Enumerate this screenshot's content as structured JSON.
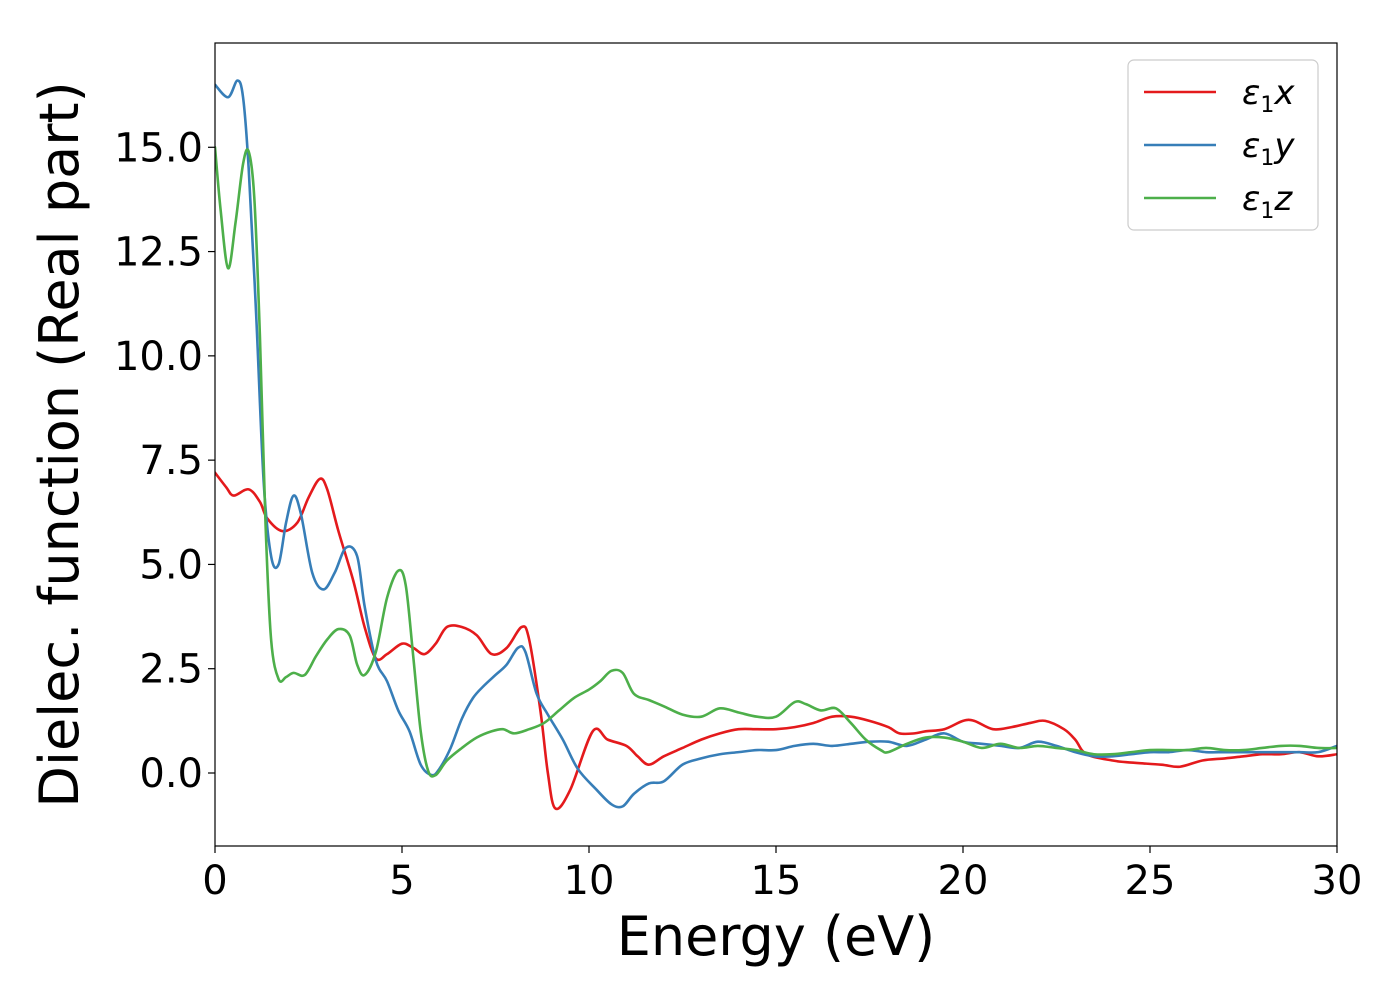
{
  "chart_data": {
    "type": "line",
    "title": "",
    "xlabel": "Energy (eV)",
    "ylabel": "Dielec. function (Real part)",
    "xlim": [
      0,
      30
    ],
    "ylim": [
      -1.75,
      17.5
    ],
    "xticks": [
      0,
      5,
      10,
      15,
      20,
      25,
      30
    ],
    "xtick_labels": [
      "0",
      "5",
      "10",
      "15",
      "20",
      "25",
      "30"
    ],
    "yticks": [
      0,
      2.5,
      5,
      7.5,
      10,
      12.5,
      15
    ],
    "ytick_labels": [
      "0.0",
      "2.5",
      "5.0",
      "7.5",
      "10.0",
      "12.5",
      "15.0"
    ],
    "grid": false,
    "legend_position": "top-right",
    "series": [
      {
        "name": "ε1x",
        "legend_main": "ε",
        "legend_sub": "1",
        "legend_suffix": "x",
        "color": "#e41a1c",
        "points": [
          [
            0,
            7.2
          ],
          [
            0.3,
            6.85
          ],
          [
            0.5,
            6.65
          ],
          [
            0.9,
            6.8
          ],
          [
            1.2,
            6.5
          ],
          [
            1.4,
            6.1
          ],
          [
            1.8,
            5.8
          ],
          [
            2.2,
            6.0
          ],
          [
            2.5,
            6.6
          ],
          [
            2.8,
            7.05
          ],
          [
            3.0,
            6.8
          ],
          [
            3.3,
            5.8
          ],
          [
            3.7,
            4.6
          ],
          [
            4.0,
            3.5
          ],
          [
            4.3,
            2.75
          ],
          [
            4.6,
            2.85
          ],
          [
            5.0,
            3.1
          ],
          [
            5.3,
            3.0
          ],
          [
            5.6,
            2.85
          ],
          [
            5.9,
            3.1
          ],
          [
            6.2,
            3.5
          ],
          [
            6.6,
            3.5
          ],
          [
            7.0,
            3.3
          ],
          [
            7.4,
            2.85
          ],
          [
            7.8,
            3.0
          ],
          [
            8.2,
            3.5
          ],
          [
            8.4,
            3.2
          ],
          [
            8.7,
            1.5
          ],
          [
            8.9,
            0.0
          ],
          [
            9.1,
            -0.85
          ],
          [
            9.5,
            -0.4
          ],
          [
            10.1,
            1.0
          ],
          [
            10.5,
            0.8
          ],
          [
            11.0,
            0.65
          ],
          [
            11.3,
            0.4
          ],
          [
            11.6,
            0.2
          ],
          [
            12.0,
            0.4
          ],
          [
            12.5,
            0.6
          ],
          [
            13.0,
            0.8
          ],
          [
            13.5,
            0.95
          ],
          [
            14.0,
            1.05
          ],
          [
            14.5,
            1.05
          ],
          [
            15.0,
            1.05
          ],
          [
            15.5,
            1.1
          ],
          [
            16.0,
            1.2
          ],
          [
            16.5,
            1.35
          ],
          [
            17.0,
            1.35
          ],
          [
            17.5,
            1.25
          ],
          [
            18.0,
            1.1
          ],
          [
            18.3,
            0.95
          ],
          [
            18.7,
            0.95
          ],
          [
            19.0,
            1.0
          ],
          [
            19.5,
            1.05
          ],
          [
            20.0,
            1.25
          ],
          [
            20.3,
            1.25
          ],
          [
            20.8,
            1.05
          ],
          [
            21.3,
            1.1
          ],
          [
            21.8,
            1.2
          ],
          [
            22.2,
            1.25
          ],
          [
            22.7,
            1.05
          ],
          [
            23.0,
            0.8
          ],
          [
            23.3,
            0.45
          ],
          [
            24.0,
            0.3
          ],
          [
            24.5,
            0.25
          ],
          [
            25.3,
            0.2
          ],
          [
            25.8,
            0.15
          ],
          [
            26.4,
            0.3
          ],
          [
            27.0,
            0.35
          ],
          [
            27.5,
            0.4
          ],
          [
            28.0,
            0.45
          ],
          [
            28.5,
            0.45
          ],
          [
            29.0,
            0.5
          ],
          [
            29.5,
            0.4
          ],
          [
            30.0,
            0.45
          ]
        ]
      },
      {
        "name": "ε1y",
        "legend_main": "ε",
        "legend_sub": "1",
        "legend_suffix": "y",
        "color": "#377eb8",
        "points": [
          [
            0,
            16.5
          ],
          [
            0.35,
            16.2
          ],
          [
            0.6,
            16.6
          ],
          [
            0.75,
            16.2
          ],
          [
            0.9,
            14.5
          ],
          [
            1.1,
            11.0
          ],
          [
            1.3,
            7.0
          ],
          [
            1.5,
            5.2
          ],
          [
            1.7,
            5.0
          ],
          [
            1.9,
            6.0
          ],
          [
            2.1,
            6.65
          ],
          [
            2.3,
            6.2
          ],
          [
            2.6,
            4.8
          ],
          [
            2.9,
            4.4
          ],
          [
            3.2,
            4.8
          ],
          [
            3.5,
            5.4
          ],
          [
            3.8,
            5.2
          ],
          [
            4.0,
            4.0
          ],
          [
            4.3,
            2.7
          ],
          [
            4.6,
            2.2
          ],
          [
            4.9,
            1.5
          ],
          [
            5.2,
            1.0
          ],
          [
            5.5,
            0.2
          ],
          [
            5.8,
            -0.05
          ],
          [
            6.0,
            0.1
          ],
          [
            6.3,
            0.6
          ],
          [
            6.6,
            1.3
          ],
          [
            6.9,
            1.8
          ],
          [
            7.2,
            2.1
          ],
          [
            7.5,
            2.35
          ],
          [
            7.8,
            2.6
          ],
          [
            8.1,
            3.0
          ],
          [
            8.3,
            2.9
          ],
          [
            8.6,
            1.9
          ],
          [
            8.9,
            1.4
          ],
          [
            9.3,
            0.8
          ],
          [
            9.7,
            0.1
          ],
          [
            10.2,
            -0.4
          ],
          [
            10.6,
            -0.75
          ],
          [
            10.9,
            -0.8
          ],
          [
            11.2,
            -0.5
          ],
          [
            11.6,
            -0.25
          ],
          [
            12.0,
            -0.2
          ],
          [
            12.5,
            0.2
          ],
          [
            13.0,
            0.35
          ],
          [
            13.5,
            0.45
          ],
          [
            14.0,
            0.5
          ],
          [
            14.5,
            0.55
          ],
          [
            15.0,
            0.55
          ],
          [
            15.5,
            0.65
          ],
          [
            16.0,
            0.7
          ],
          [
            16.5,
            0.65
          ],
          [
            17.0,
            0.7
          ],
          [
            17.5,
            0.75
          ],
          [
            18.0,
            0.75
          ],
          [
            18.5,
            0.65
          ],
          [
            19.0,
            0.8
          ],
          [
            19.5,
            0.95
          ],
          [
            20.0,
            0.75
          ],
          [
            20.5,
            0.7
          ],
          [
            21.0,
            0.65
          ],
          [
            21.5,
            0.6
          ],
          [
            22.0,
            0.75
          ],
          [
            22.5,
            0.65
          ],
          [
            23.0,
            0.5
          ],
          [
            23.5,
            0.4
          ],
          [
            24.0,
            0.4
          ],
          [
            24.5,
            0.45
          ],
          [
            25.0,
            0.5
          ],
          [
            25.5,
            0.5
          ],
          [
            26.0,
            0.55
          ],
          [
            26.5,
            0.5
          ],
          [
            27.0,
            0.5
          ],
          [
            27.5,
            0.5
          ],
          [
            28.0,
            0.5
          ],
          [
            28.5,
            0.5
          ],
          [
            29.0,
            0.5
          ],
          [
            29.5,
            0.5
          ],
          [
            30.0,
            0.65
          ]
        ]
      },
      {
        "name": "ε1z",
        "legend_main": "ε",
        "legend_sub": "1",
        "legend_suffix": "z",
        "color": "#4daf4a",
        "points": [
          [
            0,
            15.0
          ],
          [
            0.15,
            13.5
          ],
          [
            0.35,
            12.1
          ],
          [
            0.55,
            13.2
          ],
          [
            0.75,
            14.6
          ],
          [
            0.9,
            14.9
          ],
          [
            1.05,
            13.8
          ],
          [
            1.2,
            10.5
          ],
          [
            1.35,
            6.0
          ],
          [
            1.5,
            3.2
          ],
          [
            1.7,
            2.25
          ],
          [
            1.9,
            2.3
          ],
          [
            2.1,
            2.4
          ],
          [
            2.4,
            2.35
          ],
          [
            2.7,
            2.8
          ],
          [
            3.0,
            3.2
          ],
          [
            3.3,
            3.45
          ],
          [
            3.6,
            3.3
          ],
          [
            3.8,
            2.6
          ],
          [
            4.0,
            2.35
          ],
          [
            4.3,
            2.9
          ],
          [
            4.6,
            4.2
          ],
          [
            4.9,
            4.85
          ],
          [
            5.1,
            4.5
          ],
          [
            5.3,
            2.8
          ],
          [
            5.5,
            1.0
          ],
          [
            5.7,
            0.05
          ],
          [
            5.9,
            -0.05
          ],
          [
            6.2,
            0.3
          ],
          [
            6.6,
            0.6
          ],
          [
            7.0,
            0.85
          ],
          [
            7.4,
            1.0
          ],
          [
            7.7,
            1.05
          ],
          [
            8.0,
            0.95
          ],
          [
            8.4,
            1.05
          ],
          [
            8.8,
            1.2
          ],
          [
            9.2,
            1.5
          ],
          [
            9.6,
            1.8
          ],
          [
            10.0,
            2.0
          ],
          [
            10.3,
            2.2
          ],
          [
            10.6,
            2.45
          ],
          [
            10.9,
            2.4
          ],
          [
            11.2,
            1.9
          ],
          [
            11.6,
            1.75
          ],
          [
            12.0,
            1.6
          ],
          [
            12.5,
            1.4
          ],
          [
            13.0,
            1.35
          ],
          [
            13.5,
            1.55
          ],
          [
            14.0,
            1.45
          ],
          [
            14.5,
            1.35
          ],
          [
            15.0,
            1.35
          ],
          [
            15.5,
            1.7
          ],
          [
            15.8,
            1.65
          ],
          [
            16.2,
            1.5
          ],
          [
            16.6,
            1.55
          ],
          [
            17.0,
            1.2
          ],
          [
            17.4,
            0.8
          ],
          [
            17.8,
            0.55
          ],
          [
            18.0,
            0.5
          ],
          [
            18.5,
            0.7
          ],
          [
            19.0,
            0.85
          ],
          [
            19.5,
            0.85
          ],
          [
            20.0,
            0.75
          ],
          [
            20.5,
            0.6
          ],
          [
            21.0,
            0.7
          ],
          [
            21.5,
            0.6
          ],
          [
            22.0,
            0.65
          ],
          [
            22.5,
            0.6
          ],
          [
            23.0,
            0.55
          ],
          [
            23.5,
            0.45
          ],
          [
            24.0,
            0.45
          ],
          [
            24.5,
            0.5
          ],
          [
            25.0,
            0.55
          ],
          [
            25.5,
            0.55
          ],
          [
            26.0,
            0.55
          ],
          [
            26.5,
            0.6
          ],
          [
            27.0,
            0.55
          ],
          [
            27.5,
            0.55
          ],
          [
            28.0,
            0.6
          ],
          [
            28.5,
            0.65
          ],
          [
            29.0,
            0.65
          ],
          [
            29.5,
            0.6
          ],
          [
            30.0,
            0.6
          ]
        ]
      }
    ]
  }
}
